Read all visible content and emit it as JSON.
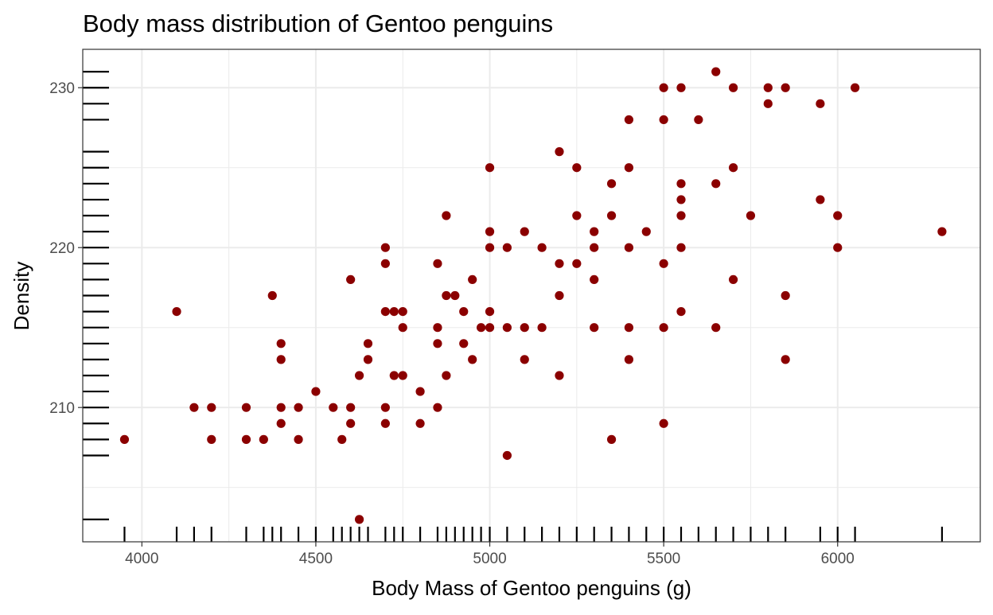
{
  "chart_data": {
    "type": "scatter",
    "title": "Body mass distribution of Gentoo penguins",
    "xlabel": "Body Mass of Gentoo penguins (g)",
    "ylabel": "Density",
    "xlim": [
      3830,
      6410
    ],
    "ylim": [
      201.6,
      232.4
    ],
    "x_ticks": [
      4000,
      4500,
      5000,
      5500,
      6000
    ],
    "y_ticks": [
      210,
      220,
      230
    ],
    "x_tick_labels": [
      "4000",
      "4500",
      "5000",
      "5500",
      "6000"
    ],
    "y_tick_labels": [
      "210",
      "220",
      "230"
    ],
    "grid": true,
    "rug": true,
    "point_color": "#8B0000",
    "rug_color": "#000000",
    "grid_color": "#EBEBEB",
    "points": [
      [
        3950,
        208
      ],
      [
        4100,
        216
      ],
      [
        4150,
        210
      ],
      [
        4200,
        210
      ],
      [
        4200,
        208
      ],
      [
        4300,
        210
      ],
      [
        4300,
        208
      ],
      [
        4350,
        208
      ],
      [
        4375,
        217
      ],
      [
        4400,
        214
      ],
      [
        4400,
        213
      ],
      [
        4400,
        210
      ],
      [
        4400,
        209
      ],
      [
        4450,
        210
      ],
      [
        4450,
        208
      ],
      [
        4500,
        211
      ],
      [
        4550,
        210
      ],
      [
        4575,
        208
      ],
      [
        4600,
        218
      ],
      [
        4600,
        210
      ],
      [
        4600,
        209
      ],
      [
        4625,
        212
      ],
      [
        4625,
        203
      ],
      [
        4650,
        214
      ],
      [
        4650,
        213
      ],
      [
        4700,
        220
      ],
      [
        4700,
        219
      ],
      [
        4700,
        216
      ],
      [
        4700,
        210
      ],
      [
        4700,
        209
      ],
      [
        4725,
        216
      ],
      [
        4725,
        212
      ],
      [
        4750,
        216
      ],
      [
        4750,
        215
      ],
      [
        4750,
        212
      ],
      [
        4800,
        211
      ],
      [
        4800,
        209
      ],
      [
        4850,
        219
      ],
      [
        4850,
        215
      ],
      [
        4850,
        214
      ],
      [
        4850,
        210
      ],
      [
        4875,
        222
      ],
      [
        4875,
        217
      ],
      [
        4875,
        212
      ],
      [
        4900,
        217
      ],
      [
        4925,
        216
      ],
      [
        4925,
        214
      ],
      [
        4950,
        218
      ],
      [
        4950,
        213
      ],
      [
        4975,
        215
      ],
      [
        5000,
        225
      ],
      [
        5000,
        221
      ],
      [
        5000,
        220
      ],
      [
        5000,
        216
      ],
      [
        5000,
        215
      ],
      [
        5050,
        220
      ],
      [
        5050,
        215
      ],
      [
        5050,
        207
      ],
      [
        5100,
        221
      ],
      [
        5100,
        215
      ],
      [
        5100,
        213
      ],
      [
        5150,
        220
      ],
      [
        5150,
        215
      ],
      [
        5200,
        226
      ],
      [
        5200,
        219
      ],
      [
        5200,
        217
      ],
      [
        5200,
        212
      ],
      [
        5250,
        225
      ],
      [
        5250,
        222
      ],
      [
        5250,
        219
      ],
      [
        5300,
        221
      ],
      [
        5300,
        220
      ],
      [
        5300,
        218
      ],
      [
        5300,
        215
      ],
      [
        5350,
        224
      ],
      [
        5350,
        222
      ],
      [
        5350,
        208
      ],
      [
        5400,
        228
      ],
      [
        5400,
        225
      ],
      [
        5400,
        220
      ],
      [
        5400,
        215
      ],
      [
        5400,
        213
      ],
      [
        5450,
        221
      ],
      [
        5500,
        230
      ],
      [
        5500,
        228
      ],
      [
        5500,
        219
      ],
      [
        5500,
        215
      ],
      [
        5500,
        209
      ],
      [
        5550,
        230
      ],
      [
        5550,
        224
      ],
      [
        5550,
        223
      ],
      [
        5550,
        222
      ],
      [
        5550,
        220
      ],
      [
        5550,
        216
      ],
      [
        5600,
        228
      ],
      [
        5650,
        231
      ],
      [
        5650,
        224
      ],
      [
        5650,
        215
      ],
      [
        5700,
        230
      ],
      [
        5700,
        225
      ],
      [
        5700,
        218
      ],
      [
        5750,
        222
      ],
      [
        5800,
        230
      ],
      [
        5800,
        229
      ],
      [
        5850,
        230
      ],
      [
        5850,
        217
      ],
      [
        5850,
        213
      ],
      [
        5950,
        229
      ],
      [
        5950,
        223
      ],
      [
        6000,
        222
      ],
      [
        6000,
        220
      ],
      [
        6050,
        230
      ],
      [
        6300,
        221
      ]
    ]
  }
}
